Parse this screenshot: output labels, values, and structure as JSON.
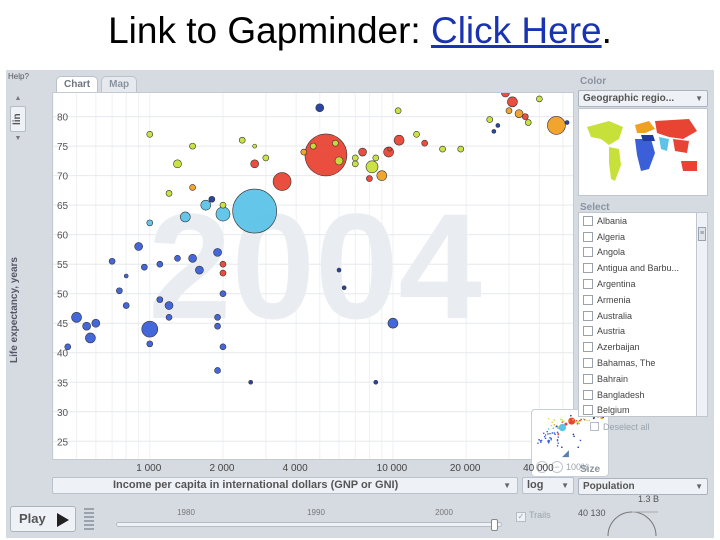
{
  "slide": {
    "title_prefix": "Link to Gapminder: ",
    "link_text": "Click Here",
    "title_suffix": "."
  },
  "app": {
    "help_label": "Help?",
    "tabs": [
      {
        "label": "Chart",
        "active": true
      },
      {
        "label": "Map",
        "active": false
      }
    ],
    "y_scale_label": "lin",
    "y_axis_label": "Life expectancy, years",
    "x_axis_label": "Income per capita in international dollars (GNP or GNI)",
    "x_scale": "log",
    "year_watermark": "2004",
    "zoom_percent": "100%",
    "play_label": "Play",
    "timeline_years": [
      "1980",
      "1990",
      "2000"
    ],
    "trails_label": "Trails",
    "color_label": "Color",
    "color_value": "Geographic regio...",
    "select_label": "Select",
    "select_items": [
      "Albania",
      "Algeria",
      "Angola",
      "Antigua and Barbu...",
      "Argentina",
      "Armenia",
      "Australia",
      "Austria",
      "Azerbaijan",
      "Bahamas, The",
      "Bahrain",
      "Bangladesh",
      "Belgium"
    ],
    "deselect_label": "Deselect all",
    "size_label": "Size",
    "size_value": "Population",
    "size_legend": [
      "1.3 B",
      "40 130"
    ]
  },
  "colors": {
    "sub_saharan_africa": "#3a5fd8",
    "south_asia": "#5cc4e8",
    "east_asia_pacific": "#e84434",
    "americas": "#c8e03a",
    "europe_central_asia": "#f0a024",
    "middle_east_north_africa": "#1f3b9e"
  },
  "chart_data": {
    "type": "scatter",
    "year": "2004",
    "xlabel": "Income per capita in international dollars (GNP or GNI)",
    "ylabel": "Life expectancy, years",
    "x_scale": "log",
    "xlim": [
      400,
      55000
    ],
    "ylim": [
      22,
      84
    ],
    "x_ticks": [
      1000,
      2000,
      4000,
      10000,
      20000,
      40000
    ],
    "x_tick_labels": [
      "1 000",
      "2 000",
      "4 000",
      "10 000",
      "20 000",
      "40 000"
    ],
    "y_ticks": [
      25,
      30,
      35,
      40,
      45,
      50,
      55,
      60,
      65,
      70,
      75,
      80
    ],
    "y_tick_labels": [
      "25",
      "30",
      "35",
      "40",
      "45",
      "50",
      "55",
      "60",
      "65",
      "70",
      "75",
      "80"
    ],
    "grid": true,
    "points": [
      {
        "x": 5000,
        "y": 81.5,
        "r": 4,
        "c": "#1f3b9e"
      },
      {
        "x": 10600,
        "y": 76,
        "r": 5,
        "c": "#e84434"
      },
      {
        "x": 9700,
        "y": 74.5,
        "r": 2,
        "c": "#e84434"
      },
      {
        "x": 10500,
        "y": 81,
        "r": 3,
        "c": "#c8e03a"
      },
      {
        "x": 13500,
        "y": 75.5,
        "r": 3,
        "c": "#e84434"
      },
      {
        "x": 29000,
        "y": 84,
        "r": 4,
        "c": "#e84434"
      },
      {
        "x": 31000,
        "y": 82.5,
        "r": 5,
        "c": "#e84434"
      },
      {
        "x": 30000,
        "y": 81,
        "r": 3,
        "c": "#f0a024"
      },
      {
        "x": 33000,
        "y": 80.5,
        "r": 4,
        "c": "#f0a024"
      },
      {
        "x": 35000,
        "y": 80,
        "r": 3,
        "c": "#e84434"
      },
      {
        "x": 40000,
        "y": 83,
        "r": 3,
        "c": "#c8e03a"
      },
      {
        "x": 47000,
        "y": 78.5,
        "r": 9,
        "c": "#f0a024"
      },
      {
        "x": 36000,
        "y": 79,
        "r": 3,
        "c": "#c8e03a"
      },
      {
        "x": 25000,
        "y": 79.5,
        "r": 3,
        "c": "#c8e03a"
      },
      {
        "x": 26000,
        "y": 77.5,
        "r": 2,
        "c": "#1f3b9e"
      },
      {
        "x": 27000,
        "y": 78.5,
        "r": 2,
        "c": "#1f3b9e"
      },
      {
        "x": 52000,
        "y": 79,
        "r": 2,
        "c": "#1f3b9e"
      },
      {
        "x": 1000,
        "y": 77,
        "r": 3,
        "c": "#c8e03a"
      },
      {
        "x": 1500,
        "y": 75,
        "r": 3,
        "c": "#c8e03a"
      },
      {
        "x": 2400,
        "y": 76,
        "r": 3,
        "c": "#c8e03a"
      },
      {
        "x": 1300,
        "y": 72,
        "r": 4,
        "c": "#c8e03a"
      },
      {
        "x": 2700,
        "y": 75,
        "r": 2,
        "c": "#c8e03a"
      },
      {
        "x": 4700,
        "y": 75,
        "r": 3,
        "c": "#c8e03a"
      },
      {
        "x": 7000,
        "y": 72,
        "r": 3,
        "c": "#c8e03a"
      },
      {
        "x": 12500,
        "y": 77,
        "r": 3,
        "c": "#c8e03a"
      },
      {
        "x": 16000,
        "y": 74.5,
        "r": 3,
        "c": "#c8e03a"
      },
      {
        "x": 19000,
        "y": 74.5,
        "r": 3,
        "c": "#c8e03a"
      },
      {
        "x": 6000,
        "y": 72.5,
        "r": 4,
        "c": "#c8e03a"
      },
      {
        "x": 8200,
        "y": 71.5,
        "r": 6,
        "c": "#c8e03a"
      },
      {
        "x": 5300,
        "y": 73.5,
        "r": 21,
        "c": "#e84434"
      },
      {
        "x": 7500,
        "y": 74,
        "r": 4,
        "c": "#e84434"
      },
      {
        "x": 9600,
        "y": 74,
        "r": 5,
        "c": "#e84434"
      },
      {
        "x": 7000,
        "y": 73,
        "r": 3,
        "c": "#c8e03a"
      },
      {
        "x": 3000,
        "y": 73,
        "r": 3,
        "c": "#c8e03a"
      },
      {
        "x": 5800,
        "y": 75.5,
        "r": 3,
        "c": "#c8e03a"
      },
      {
        "x": 4300,
        "y": 74,
        "r": 3,
        "c": "#f0a024"
      },
      {
        "x": 3500,
        "y": 69,
        "r": 9,
        "c": "#e84434"
      },
      {
        "x": 2700,
        "y": 72,
        "r": 4,
        "c": "#e84434"
      },
      {
        "x": 9000,
        "y": 70,
        "r": 5,
        "c": "#f0a024"
      },
      {
        "x": 8000,
        "y": 69.5,
        "r": 3,
        "c": "#e84434"
      },
      {
        "x": 8500,
        "y": 73,
        "r": 3,
        "c": "#c8e03a"
      },
      {
        "x": 2700,
        "y": 64,
        "r": 22,
        "c": "#5cc4e8"
      },
      {
        "x": 1700,
        "y": 65,
        "r": 5,
        "c": "#5cc4e8"
      },
      {
        "x": 2000,
        "y": 63.5,
        "r": 7,
        "c": "#5cc4e8"
      },
      {
        "x": 1400,
        "y": 63,
        "r": 5,
        "c": "#5cc4e8"
      },
      {
        "x": 2000,
        "y": 65,
        "r": 3,
        "c": "#c8e03a"
      },
      {
        "x": 1000,
        "y": 62,
        "r": 3,
        "c": "#5cc4e8"
      },
      {
        "x": 1500,
        "y": 68,
        "r": 3,
        "c": "#f0a024"
      },
      {
        "x": 1200,
        "y": 67,
        "r": 3,
        "c": "#c8e03a"
      },
      {
        "x": 1800,
        "y": 66,
        "r": 3,
        "c": "#1f3b9e"
      },
      {
        "x": 1500,
        "y": 56,
        "r": 4,
        "c": "#3a5fd8"
      },
      {
        "x": 1900,
        "y": 57,
        "r": 4,
        "c": "#3a5fd8"
      },
      {
        "x": 2000,
        "y": 55,
        "r": 3,
        "c": "#e84434"
      },
      {
        "x": 1300,
        "y": 56,
        "r": 3,
        "c": "#3a5fd8"
      },
      {
        "x": 1600,
        "y": 54,
        "r": 4,
        "c": "#3a5fd8"
      },
      {
        "x": 2000,
        "y": 53.5,
        "r": 3,
        "c": "#e84434"
      },
      {
        "x": 900,
        "y": 58,
        "r": 4,
        "c": "#3a5fd8"
      },
      {
        "x": 950,
        "y": 54.5,
        "r": 3,
        "c": "#3a5fd8"
      },
      {
        "x": 700,
        "y": 55.5,
        "r": 3,
        "c": "#3a5fd8"
      },
      {
        "x": 800,
        "y": 53,
        "r": 2,
        "c": "#3a5fd8"
      },
      {
        "x": 1100,
        "y": 55,
        "r": 3,
        "c": "#3a5fd8"
      },
      {
        "x": 750,
        "y": 50.5,
        "r": 3,
        "c": "#3a5fd8"
      },
      {
        "x": 2000,
        "y": 50,
        "r": 3,
        "c": "#3a5fd8"
      },
      {
        "x": 1100,
        "y": 49,
        "r": 3,
        "c": "#3a5fd8"
      },
      {
        "x": 1200,
        "y": 48,
        "r": 4,
        "c": "#3a5fd8"
      },
      {
        "x": 800,
        "y": 48,
        "r": 3,
        "c": "#3a5fd8"
      },
      {
        "x": 1900,
        "y": 46,
        "r": 3,
        "c": "#3a5fd8"
      },
      {
        "x": 1200,
        "y": 46,
        "r": 3,
        "c": "#3a5fd8"
      },
      {
        "x": 500,
        "y": 46,
        "r": 5,
        "c": "#3a5fd8"
      },
      {
        "x": 600,
        "y": 45,
        "r": 4,
        "c": "#3a5fd8"
      },
      {
        "x": 550,
        "y": 44.5,
        "r": 4,
        "c": "#3a5fd8"
      },
      {
        "x": 1000,
        "y": 44,
        "r": 8,
        "c": "#3a5fd8"
      },
      {
        "x": 570,
        "y": 42.5,
        "r": 5,
        "c": "#3a5fd8"
      },
      {
        "x": 1000,
        "y": 41.5,
        "r": 3,
        "c": "#3a5fd8"
      },
      {
        "x": 460,
        "y": 41,
        "r": 3,
        "c": "#3a5fd8"
      },
      {
        "x": 1900,
        "y": 44.5,
        "r": 3,
        "c": "#3a5fd8"
      },
      {
        "x": 2000,
        "y": 41,
        "r": 3,
        "c": "#3a5fd8"
      },
      {
        "x": 1900,
        "y": 37,
        "r": 3,
        "c": "#3a5fd8"
      },
      {
        "x": 10000,
        "y": 45,
        "r": 5,
        "c": "#3a5fd8"
      },
      {
        "x": 6300,
        "y": 51,
        "r": 2,
        "c": "#1f3b9e"
      },
      {
        "x": 6000,
        "y": 54,
        "r": 2,
        "c": "#1f3b9e"
      },
      {
        "x": 8500,
        "y": 35,
        "r": 2,
        "c": "#1f3b9e"
      },
      {
        "x": 2600,
        "y": 35,
        "r": 2,
        "c": "#1f3b9e"
      }
    ]
  }
}
